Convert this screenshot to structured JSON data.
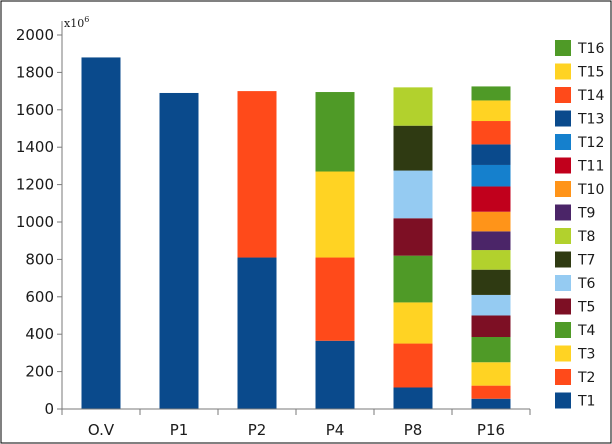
{
  "chart_data": {
    "type": "bar",
    "stacked": true,
    "title": "",
    "xlabel": "",
    "ylabel": "",
    "ylim": [
      0,
      2000
    ],
    "yticks": [
      0,
      200,
      400,
      600,
      800,
      1000,
      1200,
      1400,
      1600,
      1800,
      2000
    ],
    "y_multiplier_label": "x10",
    "y_multiplier_exponent": "6",
    "grid": false,
    "legend_position": "right",
    "legend_order": "T16 to T1, top to bottom",
    "categories": [
      "O.V",
      "P1",
      "P2",
      "P4",
      "P8",
      "P16"
    ],
    "series": [
      {
        "name": "T1",
        "color": "#0a4a8c",
        "values": [
          1880,
          1690,
          810,
          365,
          115,
          55
        ]
      },
      {
        "name": "T2",
        "color": "#ff4a1a",
        "values": [
          0,
          0,
          890,
          445,
          235,
          70
        ]
      },
      {
        "name": "T3",
        "color": "#ffd323",
        "values": [
          0,
          0,
          0,
          460,
          220,
          125
        ]
      },
      {
        "name": "T4",
        "color": "#4f9a27",
        "values": [
          0,
          0,
          0,
          425,
          250,
          135
        ]
      },
      {
        "name": "T5",
        "color": "#7d0f24",
        "values": [
          0,
          0,
          0,
          0,
          200,
          115
        ]
      },
      {
        "name": "T6",
        "color": "#95cbf2",
        "values": [
          0,
          0,
          0,
          0,
          255,
          110
        ]
      },
      {
        "name": "T7",
        "color": "#2f3a12",
        "values": [
          0,
          0,
          0,
          0,
          240,
          135
        ]
      },
      {
        "name": "T8",
        "color": "#b2d12d",
        "values": [
          0,
          0,
          0,
          0,
          205,
          105
        ]
      },
      {
        "name": "T9",
        "color": "#4b2568",
        "values": [
          0,
          0,
          0,
          0,
          0,
          100
        ]
      },
      {
        "name": "T10",
        "color": "#ff9419",
        "values": [
          0,
          0,
          0,
          0,
          0,
          105
        ]
      },
      {
        "name": "T11",
        "color": "#c1001c",
        "values": [
          0,
          0,
          0,
          0,
          0,
          135
        ]
      },
      {
        "name": "T12",
        "color": "#1580cd",
        "values": [
          0,
          0,
          0,
          0,
          0,
          115
        ]
      },
      {
        "name": "T13",
        "color": "#0a4a8c",
        "values": [
          0,
          0,
          0,
          0,
          0,
          110
        ]
      },
      {
        "name": "T14",
        "color": "#ff4a1a",
        "values": [
          0,
          0,
          0,
          0,
          0,
          125
        ]
      },
      {
        "name": "T15",
        "color": "#ffd323",
        "values": [
          0,
          0,
          0,
          0,
          0,
          110
        ]
      },
      {
        "name": "T16",
        "color": "#4f9a27",
        "values": [
          0,
          0,
          0,
          0,
          0,
          75
        ]
      }
    ]
  }
}
